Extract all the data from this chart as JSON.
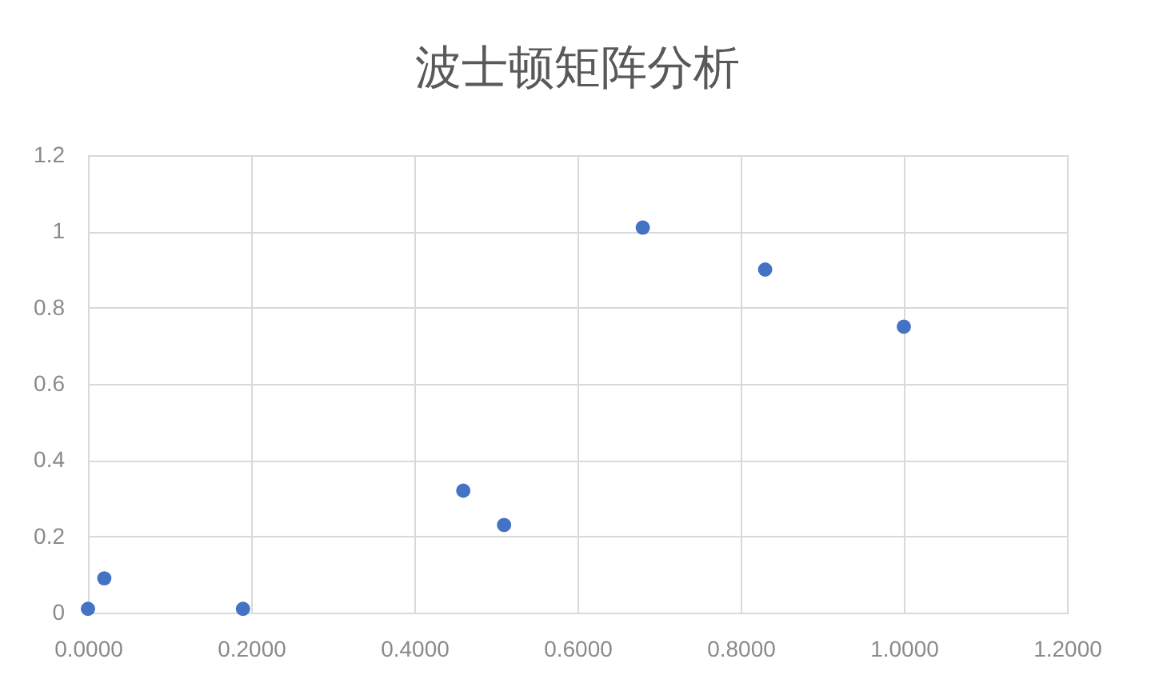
{
  "chart_data": {
    "type": "scatter",
    "title": "波士顿矩阵分析",
    "x": [
      0,
      0.02,
      0.19,
      0.46,
      0.51,
      0.68,
      0.83,
      1.0
    ],
    "series": [
      {
        "color": "#4472c4",
        "values": [
          0.01,
          0.09,
          0.01,
          0.32,
          0.23,
          1.01,
          0.9,
          0.75
        ]
      }
    ],
    "xlim": [
      0,
      1.2
    ],
    "ylim": [
      0,
      1.2
    ],
    "xticks": [
      {
        "value": 0,
        "label": "0.0000"
      },
      {
        "value": 0.2,
        "label": "0.2000"
      },
      {
        "value": 0.4,
        "label": "0.4000"
      },
      {
        "value": 0.6,
        "label": "0.6000"
      },
      {
        "value": 0.8,
        "label": "0.8000"
      },
      {
        "value": 1,
        "label": "1.0000"
      },
      {
        "value": 1.2,
        "label": "1.2000"
      }
    ],
    "yticks": [
      0,
      0.2,
      0.4,
      0.6,
      0.8,
      1,
      1.2
    ],
    "grid": true,
    "marker": "circle"
  }
}
